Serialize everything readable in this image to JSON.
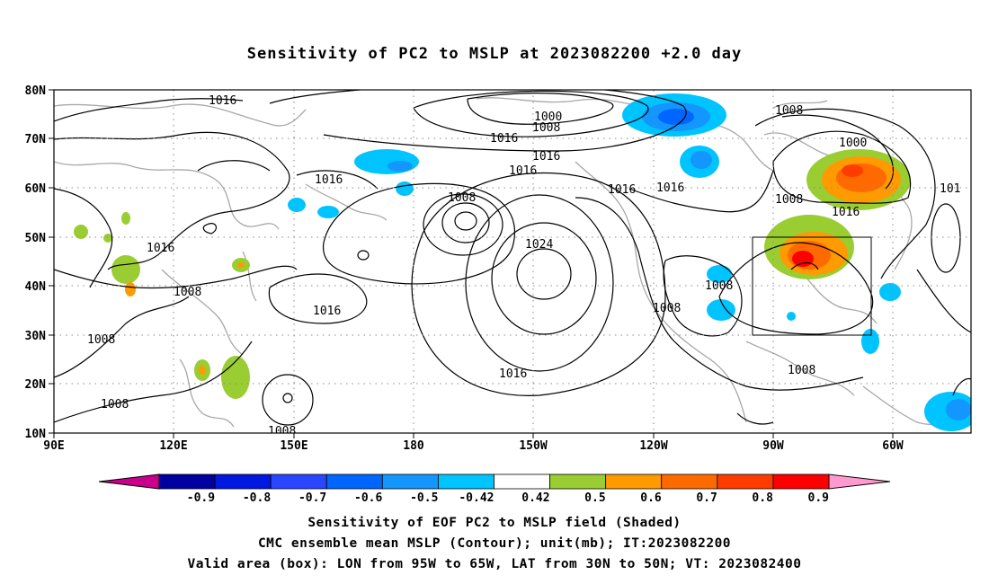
{
  "title": "Sensitivity of PC2 to MSLP at 2023082200 +2.0 day",
  "captions": [
    "Sensitivity of EOF PC2 to MSLP field (Shaded)",
    "CMC ensemble mean MSLP (Contour); unit(mb); IT:2023082200",
    "Valid area (box): LON from 95W to 65W, LAT from 30N to 50N; VT: 2023082400"
  ],
  "map": {
    "lon_labels": [
      "90E",
      "120E",
      "150E",
      "180",
      "150W",
      "120W",
      "90W",
      "60W"
    ],
    "lat_labels": [
      "80N",
      "70N",
      "60N",
      "50N",
      "40N",
      "30N",
      "20N",
      "10N"
    ],
    "contour_labels": [
      "1016",
      "1016",
      "1016",
      "1016",
      "1016",
      "1016",
      "1016",
      "1016",
      "1016",
      "1016",
      "1008",
      "1008",
      "1008",
      "1008",
      "1008",
      "1008",
      "1008",
      "1008",
      "1008",
      "1008",
      "1000",
      "1000",
      "1024",
      "101"
    ],
    "valid_box": {
      "lon_min": -95,
      "lon_max": -65,
      "lat_min": 30,
      "lat_max": 50
    }
  },
  "colorbar": {
    "labels": [
      "-0.9",
      "-0.8",
      "-0.7",
      "-0.6",
      "-0.5",
      "-0.42",
      "0.42",
      "0.5",
      "0.6",
      "0.7",
      "0.8",
      "0.9"
    ],
    "colors": [
      "#0000a0",
      "#0018e0",
      "#2a46ff",
      "#0066ff",
      "#1496ff",
      "#00c4ff",
      "#ffffff",
      "#9acd32",
      "#ff9a00",
      "#ff6a00",
      "#ff3c00",
      "#ff0000"
    ],
    "low_extend_color": "#c8008c",
    "high_extend_color": "#ff9ad0"
  }
}
